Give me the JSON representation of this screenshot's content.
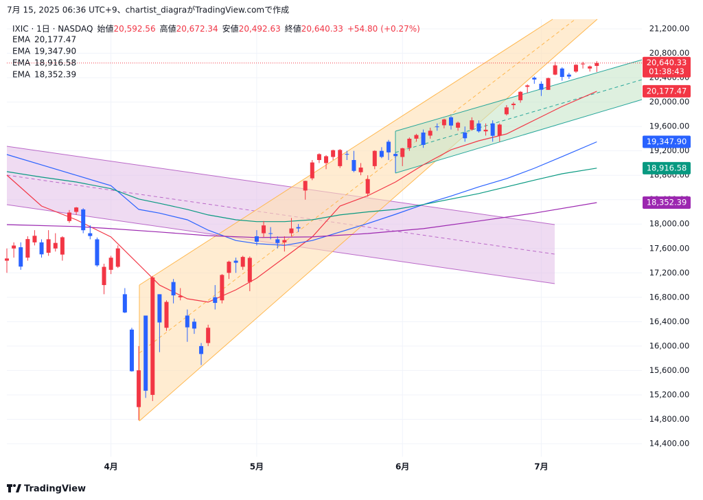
{
  "caption": "7月 15, 2025 06:36 UTC+9、chartist_diagraがTradingView.comで作成",
  "brand": "TradingView",
  "chart_data": {
    "type": "candlestick",
    "symbol": "IXIC · 1日 · NASDAQ",
    "ohlc_labels": {
      "open": "始値",
      "high": "高値",
      "low": "安値",
      "close": "終値"
    },
    "header": {
      "open": {
        "value": 20592.56,
        "label": "20,592.56"
      },
      "high": {
        "value": 20672.34,
        "label": "20,672.34"
      },
      "low": {
        "value": 20492.63,
        "label": "20,492.63"
      },
      "close": {
        "value": 20640.33,
        "label": "20,640.33"
      },
      "change": {
        "value": 54.8,
        "label": "+54.80"
      },
      "change_pct": {
        "value": 0.27,
        "label": "(+0.27%)"
      }
    },
    "countdown": "01:38:43",
    "up_color": "#f23645",
    "down_color": "#2962ff",
    "x": [
      1,
      2,
      3,
      4,
      5,
      6,
      7,
      8,
      9,
      10,
      11,
      12,
      13,
      14,
      15,
      16,
      17,
      18,
      19,
      20,
      21,
      22,
      23,
      24,
      25,
      26,
      27,
      28,
      29,
      30,
      31,
      32,
      33,
      34,
      35,
      36,
      37,
      38,
      39,
      40,
      41,
      42,
      43,
      44,
      45,
      46,
      47,
      48,
      49,
      50,
      51,
      52,
      53,
      54,
      55,
      56,
      57,
      58,
      59,
      60,
      61,
      62,
      63,
      64,
      65,
      66,
      67,
      68,
      69,
      70,
      71,
      72,
      73,
      74,
      75,
      76,
      77,
      78,
      79,
      80,
      81,
      82,
      83,
      84,
      85,
      86
    ],
    "open": [
      17400,
      17600,
      17620,
      17450,
      17700,
      17700,
      17530,
      17600,
      17500,
      18050,
      18200,
      18240,
      17850,
      17750,
      17000,
      17250,
      17300,
      16850,
      16270,
      15000,
      16500,
      15200,
      16850,
      16300,
      17050,
      16800,
      16500,
      16400,
      16000,
      16050,
      16800,
      16750,
      17200,
      17400,
      17300,
      17050,
      17800,
      17850,
      17850,
      17750,
      17700,
      17850,
      17950,
      18550,
      18750,
      19050,
      19000,
      19100,
      18950,
      19150,
      19050,
      18850,
      18500,
      18950,
      19200,
      19350,
      19150,
      19100,
      19250,
      19400,
      19500,
      19450,
      19600,
      19620,
      19750,
      19580,
      19500,
      19550,
      19650,
      19520,
      19650,
      19450,
      19800,
      19950,
      20030,
      20250,
      20400,
      20300,
      20200,
      20450,
      20550,
      20450,
      20500,
      20620,
      20550,
      20592.56
    ],
    "high": [
      17600,
      17700,
      17700,
      17800,
      17900,
      17750,
      17900,
      17850,
      17800,
      18230,
      18280,
      18260,
      17980,
      17780,
      17350,
      17480,
      17650,
      16950,
      16300,
      16000,
      16500,
      17150,
      16850,
      16750,
      17100,
      16950,
      16600,
      16450,
      16050,
      16350,
      17000,
      17180,
      17400,
      17450,
      17480,
      17470,
      17900,
      18050,
      17950,
      17800,
      17800,
      18100,
      18000,
      18710,
      19050,
      19160,
      19130,
      19220,
      19230,
      19200,
      19200,
      19000,
      18800,
      19210,
      19260,
      19380,
      19170,
      19250,
      19420,
      19480,
      19550,
      19580,
      19650,
      19730,
      19770,
      19680,
      19600,
      19750,
      19700,
      19650,
      19700,
      19650,
      19950,
      20000,
      20180,
      20290,
      20420,
      20340,
      20400,
      20660,
      20570,
      20480,
      20620,
      20660,
      20600,
      20672.34
    ],
    "low": [
      17200,
      17450,
      17250,
      17400,
      17650,
      17450,
      17480,
      17550,
      17400,
      18020,
      18150,
      17850,
      17750,
      17300,
      16850,
      17180,
      17280,
      16540,
      15580,
      14785,
      15150,
      15100,
      15900,
      16250,
      16700,
      16750,
      16070,
      16200,
      15690,
      16000,
      16600,
      16700,
      17100,
      17200,
      17250,
      16900,
      17650,
      17780,
      17750,
      17600,
      17550,
      17800,
      17870,
      18400,
      18720,
      19000,
      18900,
      19050,
      18920,
      19050,
      18850,
      18800,
      18450,
      18900,
      19080,
      19050,
      18850,
      18950,
      19200,
      19350,
      19250,
      19400,
      19530,
      19570,
      19550,
      19530,
      19350,
      19530,
      19500,
      19450,
      19350,
      19350,
      19780,
      19880,
      19990,
      20150,
      20300,
      20100,
      20200,
      20440,
      20350,
      20380,
      20480,
      20550,
      20500,
      20492.63
    ],
    "close": [
      17436,
      17648,
      17303,
      17754,
      17808,
      17504,
      17751,
      17691,
      17784,
      18189,
      18272,
      17899,
      17804,
      17323,
      17299,
      17449,
      17601,
      16551,
      15588,
      15603,
      15268,
      17125,
      16387,
      16724,
      16831,
      16823,
      16307,
      16287,
      15870,
      16300,
      16708,
      17166,
      17383,
      17366,
      17461,
      17446,
      17710,
      17978,
      17844,
      17690,
      17738,
      17928,
      17929,
      18708,
      19010,
      19146,
      19112,
      19211,
      19215,
      19143,
      18872,
      18926,
      18737,
      19200,
      19101,
      19175,
      19114,
      19243,
      19399,
      19460,
      19298,
      19530,
      19591,
      19715,
      19615,
      19662,
      19407,
      19701,
      19521,
      19546,
      19447,
      19631,
      19913,
      19973,
      20168,
      20273,
      20370,
      20202,
      20393,
      20601,
      20412,
      20418,
      20611,
      20630,
      20585,
      20640.33
    ],
    "xlim": [
      1,
      92.5
    ],
    "xticks": [
      {
        "value": 16,
        "label": "4月"
      },
      {
        "value": 37,
        "label": "5月"
      },
      {
        "value": 58,
        "label": "6月"
      },
      {
        "value": 78,
        "label": "7月"
      }
    ],
    "ylim": [
      14186,
      21358
    ],
    "yticks": [
      {
        "value": 14400,
        "label": "14,400.00"
      },
      {
        "value": 14800,
        "label": "14,800.00"
      },
      {
        "value": 15200,
        "label": "15,200.00"
      },
      {
        "value": 15600,
        "label": "15,600.00"
      },
      {
        "value": 16000,
        "label": "16,000.00"
      },
      {
        "value": 16400,
        "label": "16,400.00"
      },
      {
        "value": 16800,
        "label": "16,800.00"
      },
      {
        "value": 17200,
        "label": "17,200.00"
      },
      {
        "value": 17600,
        "label": "17,600.00"
      },
      {
        "value": 18000,
        "label": "18,000.00"
      },
      {
        "value": 18400,
        "label": "18,400.00"
      },
      {
        "value": 18800,
        "label": "18,800.00"
      },
      {
        "value": 19200,
        "label": "19,200.00"
      },
      {
        "value": 19600,
        "label": "19,600.00"
      },
      {
        "value": 20000,
        "label": "20,000.00"
      },
      {
        "value": 20400,
        "label": "20,400.00"
      },
      {
        "value": 20800,
        "label": "20,800.00"
      },
      {
        "value": 21200,
        "label": "21,200.00"
      }
    ],
    "grid": true,
    "series": [
      {
        "name": "EMA",
        "color": "#f23645",
        "x": [
          1,
          6,
          11,
          16,
          20,
          23,
          27,
          30,
          34,
          37,
          41,
          45,
          49,
          53,
          57,
          61,
          65,
          69,
          73,
          77,
          81,
          86
        ],
        "values": [
          18802,
          18296,
          18070,
          17789,
          17338,
          17000,
          16776,
          16720,
          16922,
          17113,
          17451,
          17789,
          18295,
          18464,
          18690,
          18971,
          19218,
          19365,
          19478,
          19703,
          19928,
          20177.47
        ],
        "last": {
          "value": 20177.47,
          "label": "20,177.47"
        }
      },
      {
        "name": "EMA",
        "color": "#2962ff",
        "x": [
          1,
          6,
          11,
          16,
          20,
          23,
          27,
          30,
          34,
          37,
          41,
          45,
          49,
          53,
          57,
          61,
          65,
          69,
          73,
          77,
          81,
          86
        ],
        "values": [
          19140,
          18970,
          18800,
          18630,
          18240,
          18180,
          18070,
          17900,
          17730,
          17680,
          17650,
          17730,
          17870,
          18010,
          18160,
          18320,
          18460,
          18610,
          18745,
          18915,
          19105,
          19347.9
        ],
        "last": {
          "value": 19347.9,
          "label": "19,347.90"
        }
      },
      {
        "name": "EMA",
        "color": "#089981",
        "x": [
          1,
          6,
          11,
          16,
          20,
          23,
          27,
          30,
          34,
          37,
          41,
          45,
          49,
          53,
          57,
          61,
          65,
          69,
          73,
          77,
          81,
          86
        ],
        "values": [
          18860,
          18770,
          18690,
          18580,
          18410,
          18340,
          18240,
          18150,
          18070,
          18040,
          18040,
          18070,
          18150,
          18200,
          18240,
          18320,
          18410,
          18500,
          18610,
          18720,
          18825,
          18916.58
        ],
        "last": {
          "value": 18916.58,
          "label": "18,916.58"
        }
      },
      {
        "name": "EMA",
        "color": "#9c27b0",
        "x": [
          1,
          11,
          16,
          23,
          30,
          37,
          45,
          53,
          61,
          69,
          77,
          86
        ],
        "values": [
          17990,
          17960,
          17925,
          17870,
          17810,
          17780,
          17790,
          17845,
          17925,
          18050,
          18180,
          18352.39
        ],
        "last": {
          "value": 18352.39,
          "label": "18,352.39"
        }
      }
    ]
  }
}
